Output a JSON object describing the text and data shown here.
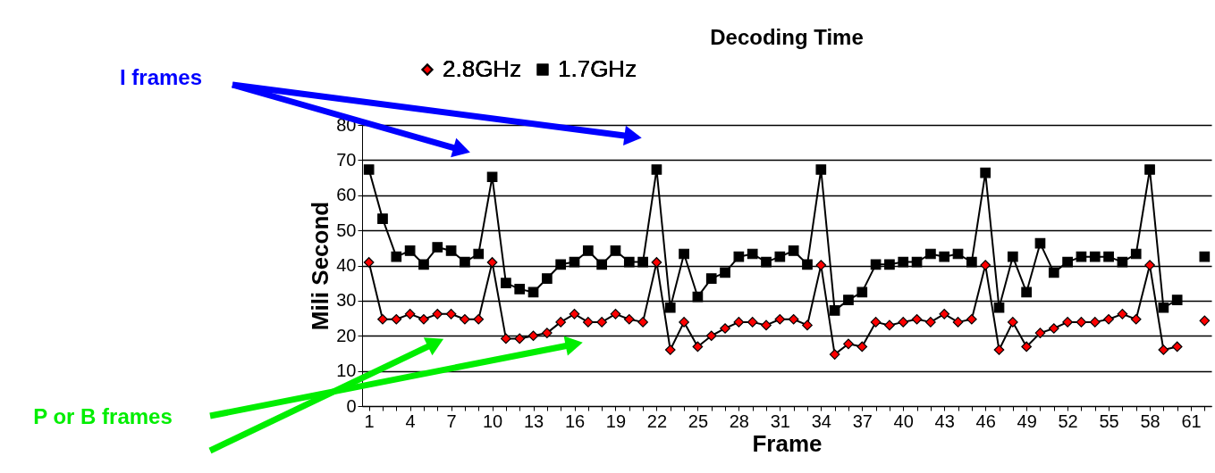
{
  "chart_data": {
    "type": "line",
    "title": "Decoding Time",
    "xlabel": "Frame",
    "ylabel": "Mili Second",
    "categories": [
      "1",
      null,
      null,
      "4",
      null,
      null,
      "7",
      null,
      null,
      "10",
      null,
      null,
      "13",
      null,
      null,
      "16",
      null,
      null,
      "19",
      null,
      null,
      "22",
      null,
      null,
      "25",
      null,
      null,
      "28",
      null,
      null,
      "31",
      null,
      null,
      "34",
      null,
      null,
      "37",
      null,
      null,
      "40",
      null,
      null,
      "43",
      null,
      null,
      "46",
      null,
      null,
      "49",
      null,
      null,
      "52",
      null,
      null,
      "55",
      null,
      null,
      "58",
      null,
      null,
      "61",
      null
    ],
    "series": [
      {
        "name": "2.8GHz",
        "color": "#ff0000",
        "marker": "diamond",
        "values": [
          40.9,
          24.7,
          24.7,
          26.2,
          24.7,
          26.2,
          26.2,
          24.7,
          24.7,
          40.9,
          19.2,
          19.2,
          20,
          20.8,
          23.9,
          26.2,
          23.9,
          23.9,
          26.2,
          24.7,
          23.9,
          40.9,
          16,
          23.9,
          16.9,
          20,
          22.1,
          23.9,
          23.9,
          23,
          24.7,
          24.7,
          23,
          40.1,
          14.7,
          17.7,
          16.9,
          23.9,
          23,
          23.9,
          24.7,
          23.9,
          26.2,
          23.9,
          24.7,
          40.1,
          16,
          23.9,
          16.9,
          20.8,
          22.1,
          23.9,
          23.9,
          23.9,
          24.7,
          26.2,
          24.7,
          40.1,
          16,
          16.9,
          null,
          24.3
        ]
      },
      {
        "name": "1.7GHz",
        "color": "#000000",
        "marker": "square",
        "values": [
          67.3,
          53.3,
          42.5,
          44.2,
          40.3,
          45.2,
          44.2,
          41,
          43.3,
          65.2,
          35,
          33.3,
          32.4,
          36.3,
          40.3,
          41,
          44.2,
          40.3,
          44.2,
          41,
          41,
          67.3,
          28,
          43.3,
          31.1,
          36.3,
          38,
          42.5,
          43.3,
          41,
          42.5,
          44.2,
          40.3,
          67.3,
          27.2,
          30.2,
          32.4,
          40.3,
          40.3,
          41,
          41,
          43.3,
          42.5,
          43.3,
          41,
          66.4,
          28,
          42.5,
          32.4,
          46.3,
          38,
          41,
          42.5,
          42.5,
          42.5,
          41,
          43.3,
          67.3,
          28,
          30.2,
          null,
          42.5
        ]
      }
    ],
    "ylim": [
      0,
      80
    ],
    "yticks": [
      0,
      10,
      20,
      30,
      40,
      50,
      60,
      70,
      80
    ],
    "grid": "y",
    "legend": "top",
    "line_style": "solid",
    "annotations": [
      "I frames",
      "P or B frames"
    ]
  }
}
